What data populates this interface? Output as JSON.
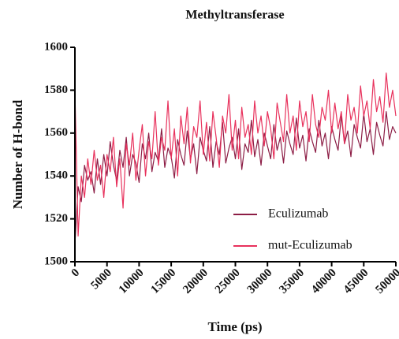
{
  "chart_data": {
    "type": "line",
    "title": "Methyltransferase",
    "x_label": "Time (ps)",
    "y_label": "Number of H-bond",
    "xlim": [
      0,
      50000
    ],
    "ylim": [
      1500,
      1600
    ],
    "xticks": [
      0,
      5000,
      10000,
      15000,
      20000,
      25000,
      30000,
      35000,
      40000,
      45000,
      50000
    ],
    "yticks": [
      1500,
      1520,
      1540,
      1560,
      1580,
      1600
    ],
    "x": [
      0,
      500,
      1000,
      1500,
      2000,
      2500,
      3000,
      3500,
      4000,
      4500,
      5000,
      5500,
      6000,
      6500,
      7000,
      7500,
      8000,
      8500,
      9000,
      9500,
      10000,
      10500,
      11000,
      11500,
      12000,
      12500,
      13000,
      13500,
      14000,
      14500,
      15000,
      15500,
      16000,
      16500,
      17000,
      17500,
      18000,
      18500,
      19000,
      19500,
      20000,
      20500,
      21000,
      21500,
      22000,
      22500,
      23000,
      23500,
      24000,
      24500,
      25000,
      25500,
      26000,
      26500,
      27000,
      27500,
      28000,
      28500,
      29000,
      29500,
      30000,
      30500,
      31000,
      31500,
      32000,
      32500,
      33000,
      33500,
      34000,
      34500,
      35000,
      35500,
      36000,
      36500,
      37000,
      37500,
      38000,
      38500,
      39000,
      39500,
      40000,
      40500,
      41000,
      41500,
      42000,
      42500,
      43000,
      43500,
      44000,
      44500,
      45000,
      45500,
      46000,
      46500,
      47000,
      47500,
      48000,
      48500,
      49000,
      49500,
      50000
    ],
    "series": [
      {
        "name": "Eculizumab",
        "color": "#8c1d45",
        "values": [
          1508,
          1535,
          1528,
          1545,
          1538,
          1542,
          1532,
          1548,
          1536,
          1550,
          1540,
          1556,
          1545,
          1538,
          1552,
          1544,
          1558,
          1540,
          1550,
          1546,
          1537,
          1555,
          1548,
          1560,
          1542,
          1551,
          1547,
          1562,
          1544,
          1553,
          1549,
          1539,
          1557,
          1550,
          1545,
          1561,
          1548,
          1555,
          1541,
          1558,
          1552,
          1547,
          1563,
          1544,
          1556,
          1550,
          1565,
          1546,
          1553,
          1558,
          1548,
          1562,
          1543,
          1555,
          1551,
          1566,
          1549,
          1557,
          1545,
          1560,
          1554,
          1548,
          1564,
          1552,
          1558,
          1546,
          1561,
          1555,
          1550,
          1567,
          1553,
          1559,
          1547,
          1562,
          1556,
          1551,
          1566,
          1554,
          1560,
          1548,
          1563,
          1557,
          1552,
          1568,
          1555,
          1561,
          1549,
          1564,
          1558,
          1553,
          1569,
          1556,
          1562,
          1550,
          1565,
          1559,
          1554,
          1570,
          1557,
          1563,
          1560
        ]
      },
      {
        "name": "mut-Eculizumab",
        "color": "#e8315c",
        "values": [
          1580,
          1512,
          1540,
          1530,
          1548,
          1536,
          1552,
          1538,
          1545,
          1530,
          1550,
          1542,
          1558,
          1535,
          1548,
          1525,
          1555,
          1545,
          1560,
          1538,
          1552,
          1564,
          1540,
          1556,
          1548,
          1570,
          1545,
          1558,
          1552,
          1575,
          1548,
          1562,
          1540,
          1568,
          1555,
          1572,
          1546,
          1563,
          1558,
          1575,
          1550,
          1565,
          1547,
          1570,
          1558,
          1544,
          1568,
          1560,
          1578,
          1552,
          1566,
          1548,
          1572,
          1558,
          1564,
          1550,
          1575,
          1560,
          1568,
          1554,
          1570,
          1562,
          1548,
          1574,
          1565,
          1556,
          1578,
          1560,
          1568,
          1552,
          1575,
          1563,
          1570,
          1556,
          1578,
          1564,
          1558,
          1572,
          1566,
          1580,
          1560,
          1574,
          1562,
          1570,
          1555,
          1578,
          1566,
          1572,
          1560,
          1582,
          1568,
          1575,
          1562,
          1585,
          1570,
          1577,
          1565,
          1588,
          1572,
          1580,
          1568
        ]
      }
    ]
  }
}
